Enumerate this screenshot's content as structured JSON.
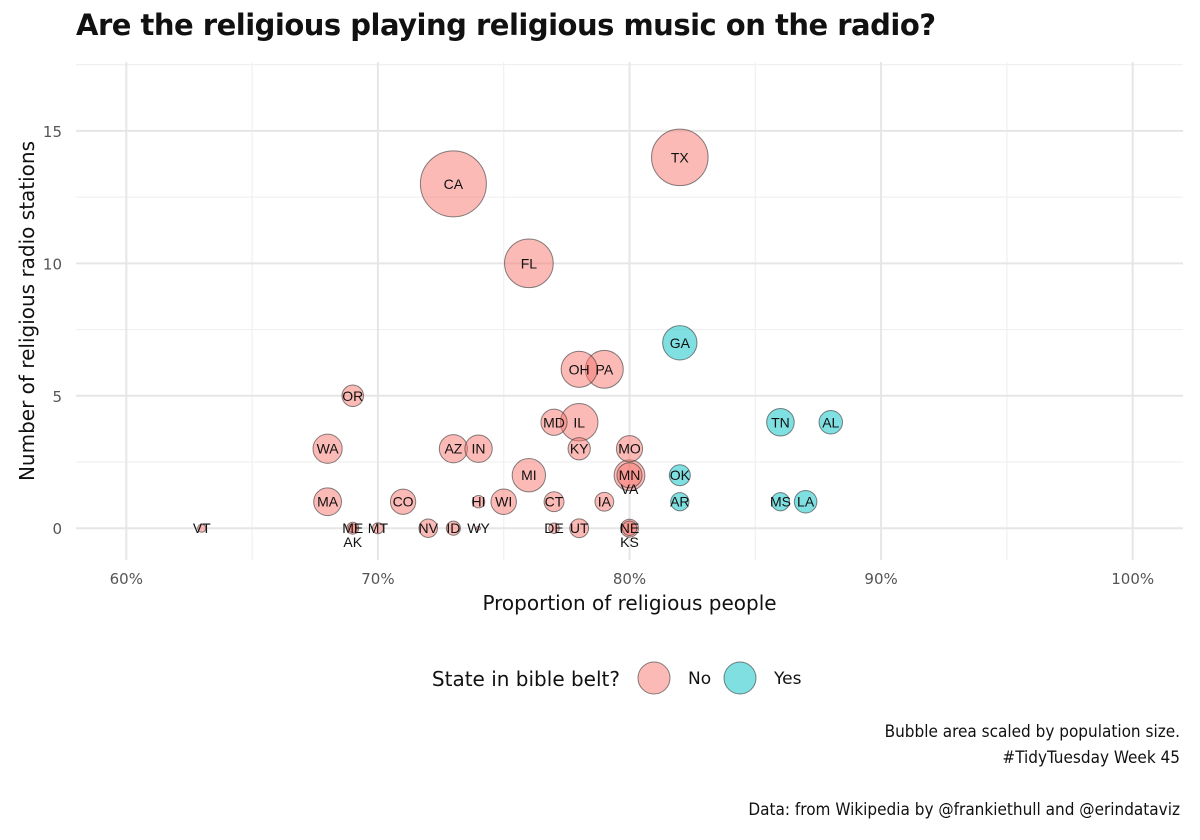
{
  "chart_data": {
    "type": "scatter",
    "title": "Are the religious playing religious music on the radio?",
    "xlabel": "Proportion of religious people",
    "ylabel": "Number of religious radio stations",
    "xlim": [
      0.58,
      1.02
    ],
    "ylim": [
      -1.2,
      17.6
    ],
    "x_ticks": [
      0.6,
      0.7,
      0.8,
      0.9,
      1.0
    ],
    "x_tick_labels": [
      "60%",
      "70%",
      "80%",
      "90%",
      "100%"
    ],
    "y_ticks": [
      0,
      5,
      10,
      15
    ],
    "y_tick_labels": [
      "0",
      "5",
      "10",
      "15"
    ],
    "grid": true,
    "legend": {
      "title": "State in bible belt?",
      "position": "bottom",
      "entries": [
        {
          "label": "No",
          "color": "#F8766D"
        },
        {
          "label": "Yes",
          "color": "#00BFC4"
        }
      ]
    },
    "size_note": "Bubble area scaled by population size.",
    "points": [
      {
        "state": "TX",
        "x": 0.82,
        "y": 14,
        "pop": 29.0,
        "bible_belt": "No"
      },
      {
        "state": "CA",
        "x": 0.73,
        "y": 13,
        "pop": 39.5,
        "bible_belt": "No"
      },
      {
        "state": "FL",
        "x": 0.76,
        "y": 10,
        "pop": 21.5,
        "bible_belt": "No"
      },
      {
        "state": "GA",
        "x": 0.82,
        "y": 7,
        "pop": 10.7,
        "bible_belt": "Yes"
      },
      {
        "state": "OH",
        "x": 0.78,
        "y": 6,
        "pop": 11.8,
        "bible_belt": "No"
      },
      {
        "state": "PA",
        "x": 0.79,
        "y": 6,
        "pop": 13.0,
        "bible_belt": "No"
      },
      {
        "state": "OR",
        "x": 0.69,
        "y": 5,
        "pop": 4.2,
        "bible_belt": "No"
      },
      {
        "state": "TN",
        "x": 0.86,
        "y": 4,
        "pop": 6.9,
        "bible_belt": "Yes"
      },
      {
        "state": "AL",
        "x": 0.88,
        "y": 4,
        "pop": 5.0,
        "bible_belt": "Yes"
      },
      {
        "state": "MD",
        "x": 0.77,
        "y": 4,
        "pop": 6.2,
        "bible_belt": "No"
      },
      {
        "state": "IL",
        "x": 0.78,
        "y": 4,
        "pop": 12.8,
        "bible_belt": "No"
      },
      {
        "state": "WA",
        "x": 0.68,
        "y": 3,
        "pop": 7.7,
        "bible_belt": "No"
      },
      {
        "state": "AZ",
        "x": 0.73,
        "y": 3,
        "pop": 7.2,
        "bible_belt": "No"
      },
      {
        "state": "IN",
        "x": 0.74,
        "y": 3,
        "pop": 6.8,
        "bible_belt": "No"
      },
      {
        "state": "KY",
        "x": 0.78,
        "y": 3,
        "pop": 4.5,
        "bible_belt": "No"
      },
      {
        "state": "MO",
        "x": 0.8,
        "y": 3,
        "pop": 6.2,
        "bible_belt": "No"
      },
      {
        "state": "MN",
        "x": 0.8,
        "y": 2,
        "pop": 5.7,
        "bible_belt": "No"
      },
      {
        "state": "VA",
        "x": 0.8,
        "y": 2,
        "pop": 8.6,
        "bible_belt": "No"
      },
      {
        "state": "MI",
        "x": 0.76,
        "y": 2,
        "pop": 10.1,
        "bible_belt": "No"
      },
      {
        "state": "OK",
        "x": 0.82,
        "y": 2,
        "pop": 4.0,
        "bible_belt": "Yes"
      },
      {
        "state": "MA",
        "x": 0.68,
        "y": 1,
        "pop": 7.0,
        "bible_belt": "No"
      },
      {
        "state": "CO",
        "x": 0.71,
        "y": 1,
        "pop": 5.8,
        "bible_belt": "No"
      },
      {
        "state": "HI",
        "x": 0.74,
        "y": 1,
        "pop": 1.4,
        "bible_belt": "No"
      },
      {
        "state": "WI",
        "x": 0.75,
        "y": 1,
        "pop": 5.9,
        "bible_belt": "No"
      },
      {
        "state": "CT",
        "x": 0.77,
        "y": 1,
        "pop": 3.6,
        "bible_belt": "No"
      },
      {
        "state": "IA",
        "x": 0.79,
        "y": 1,
        "pop": 3.2,
        "bible_belt": "No"
      },
      {
        "state": "AR",
        "x": 0.82,
        "y": 1,
        "pop": 3.0,
        "bible_belt": "Yes"
      },
      {
        "state": "MS",
        "x": 0.86,
        "y": 1,
        "pop": 3.0,
        "bible_belt": "Yes"
      },
      {
        "state": "LA",
        "x": 0.87,
        "y": 1,
        "pop": 4.6,
        "bible_belt": "Yes"
      },
      {
        "state": "VT",
        "x": 0.63,
        "y": 0,
        "pop": 0.6,
        "bible_belt": "No"
      },
      {
        "state": "ME",
        "x": 0.69,
        "y": 0,
        "pop": 1.3,
        "bible_belt": "No"
      },
      {
        "state": "AK",
        "x": 0.69,
        "y": 0,
        "pop": 0.7,
        "bible_belt": "No"
      },
      {
        "state": "MT",
        "x": 0.7,
        "y": 0,
        "pop": 1.1,
        "bible_belt": "No"
      },
      {
        "state": "NV",
        "x": 0.72,
        "y": 0,
        "pop": 3.1,
        "bible_belt": "No"
      },
      {
        "state": "ID",
        "x": 0.73,
        "y": 0,
        "pop": 1.8,
        "bible_belt": "No"
      },
      {
        "state": "WY",
        "x": 0.74,
        "y": 0,
        "pop": 0.05,
        "bible_belt": "No"
      },
      {
        "state": "DE",
        "x": 0.77,
        "y": 0,
        "pop": 1.0,
        "bible_belt": "No"
      },
      {
        "state": "UT",
        "x": 0.78,
        "y": 0,
        "pop": 3.2,
        "bible_belt": "No"
      },
      {
        "state": "NE",
        "x": 0.8,
        "y": 0,
        "pop": 1.9,
        "bible_belt": "No"
      },
      {
        "state": "KS",
        "x": 0.8,
        "y": 0,
        "pop": 2.9,
        "bible_belt": "No"
      }
    ]
  },
  "captions": {
    "line1": "Bubble area scaled by population size.",
    "line2": "#TidyTuesday Week 45",
    "line3": "Data: from Wikipedia by @frankiethull and @erindataviz"
  }
}
